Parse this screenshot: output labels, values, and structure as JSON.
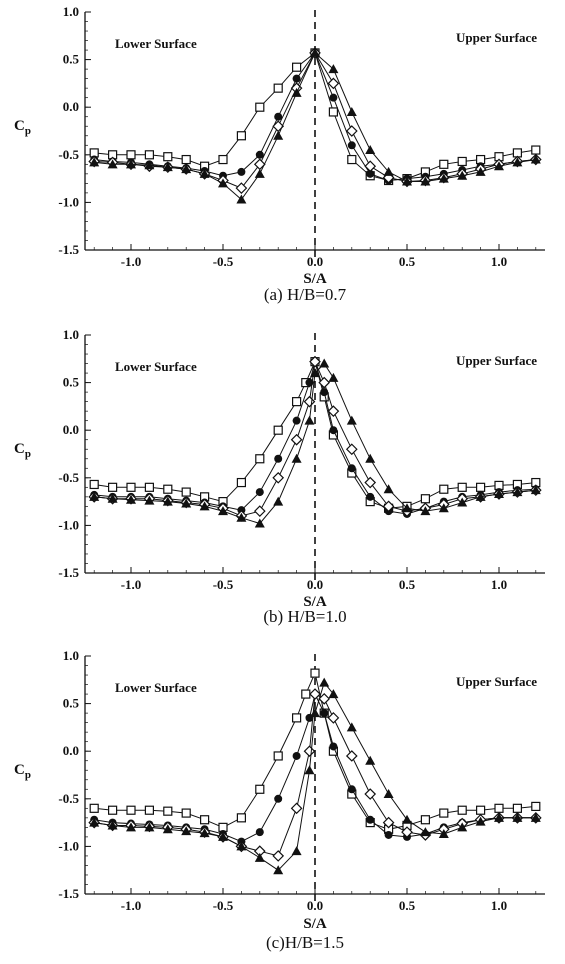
{
  "chart_data": [
    {
      "type": "line",
      "title": "(a) H/B=0.7",
      "xlabel": "S/A",
      "ylabel": "C",
      "ylabel_sub": "p",
      "xlim": [
        -1.25,
        1.25
      ],
      "ylim": [
        -1.5,
        1.0
      ],
      "xticks": [
        -1.0,
        -0.5,
        0.0,
        0.5,
        1.0
      ],
      "xtick_labels": [
        "-1.0",
        "-0.5",
        "0.0",
        "0.5",
        "1.0"
      ],
      "yticks": [
        1.0,
        0.5,
        0.0,
        -0.5,
        -1.0,
        -1.5
      ],
      "ytick_labels": [
        "1.0",
        "0.5",
        "0.0",
        "-0.5",
        "-1.0",
        "-1.5"
      ],
      "annotations": [
        "Lower Surface",
        "Upper Surface"
      ],
      "series": [
        {
          "marker": "square",
          "x": [
            -1.2,
            -1.1,
            -1.0,
            -0.9,
            -0.8,
            -0.7,
            -0.6,
            -0.5,
            -0.4,
            -0.3,
            -0.2,
            -0.1,
            0.0,
            0.1,
            0.2,
            0.3,
            0.4,
            0.5,
            0.6,
            0.7,
            0.8,
            0.9,
            1.0,
            1.1,
            1.2
          ],
          "y": [
            -0.48,
            -0.5,
            -0.5,
            -0.5,
            -0.52,
            -0.55,
            -0.62,
            -0.55,
            -0.3,
            0.0,
            0.2,
            0.42,
            0.57,
            -0.05,
            -0.55,
            -0.72,
            -0.77,
            -0.75,
            -0.68,
            -0.6,
            -0.57,
            -0.55,
            -0.52,
            -0.48,
            -0.45
          ]
        },
        {
          "marker": "circle",
          "x": [
            -1.2,
            -1.1,
            -1.0,
            -0.9,
            -0.8,
            -0.7,
            -0.6,
            -0.5,
            -0.4,
            -0.3,
            -0.2,
            -0.1,
            0.0,
            0.1,
            0.2,
            0.3,
            0.4,
            0.5,
            0.6,
            0.7,
            0.8,
            0.9,
            1.0,
            1.1,
            1.2
          ],
          "y": [
            -0.55,
            -0.57,
            -0.58,
            -0.6,
            -0.62,
            -0.64,
            -0.67,
            -0.72,
            -0.68,
            -0.5,
            -0.1,
            0.3,
            0.57,
            0.1,
            -0.4,
            -0.7,
            -0.77,
            -0.75,
            -0.73,
            -0.7,
            -0.66,
            -0.62,
            -0.6,
            -0.57,
            -0.55
          ]
        },
        {
          "marker": "diamond",
          "x": [
            -1.2,
            -1.1,
            -1.0,
            -0.9,
            -0.8,
            -0.7,
            -0.6,
            -0.5,
            -0.4,
            -0.3,
            -0.2,
            -0.1,
            0.0,
            0.1,
            0.2,
            0.3,
            0.4,
            0.5,
            0.6,
            0.7,
            0.8,
            0.9,
            1.0,
            1.1,
            1.2
          ],
          "y": [
            -0.57,
            -0.58,
            -0.6,
            -0.62,
            -0.63,
            -0.65,
            -0.7,
            -0.77,
            -0.85,
            -0.6,
            -0.2,
            0.2,
            0.57,
            0.25,
            -0.25,
            -0.62,
            -0.74,
            -0.78,
            -0.77,
            -0.74,
            -0.7,
            -0.65,
            -0.6,
            -0.57,
            -0.55
          ]
        },
        {
          "marker": "triangle",
          "x": [
            -1.2,
            -1.1,
            -1.0,
            -0.9,
            -0.8,
            -0.7,
            -0.6,
            -0.5,
            -0.4,
            -0.3,
            -0.2,
            -0.1,
            0.0,
            0.1,
            0.2,
            0.3,
            0.4,
            0.5,
            0.6,
            0.7,
            0.8,
            0.9,
            1.0,
            1.1,
            1.2
          ],
          "y": [
            -0.58,
            -0.6,
            -0.6,
            -0.61,
            -0.63,
            -0.65,
            -0.7,
            -0.8,
            -0.97,
            -0.7,
            -0.3,
            0.15,
            0.57,
            0.4,
            -0.05,
            -0.45,
            -0.68,
            -0.78,
            -0.78,
            -0.75,
            -0.72,
            -0.68,
            -0.62,
            -0.58,
            -0.55
          ]
        }
      ]
    },
    {
      "type": "line",
      "title": "(b) H/B=1.0",
      "xlabel": "S/A",
      "ylabel": "C",
      "ylabel_sub": "p",
      "xlim": [
        -1.25,
        1.25
      ],
      "ylim": [
        -1.5,
        1.0
      ],
      "xticks": [
        -1.0,
        -0.5,
        0.0,
        0.5,
        1.0
      ],
      "xtick_labels": [
        "-1.0",
        "-0.5",
        "0.0",
        "0.5",
        "1.0"
      ],
      "yticks": [
        1.0,
        0.5,
        0.0,
        -0.5,
        -1.0,
        -1.5
      ],
      "ytick_labels": [
        "1.0",
        "0.5",
        "0.0",
        "-0.5",
        "-1.0",
        "-1.5"
      ],
      "annotations": [
        "Lower Surface",
        "Upper Surface"
      ],
      "series": [
        {
          "marker": "square",
          "x": [
            -1.2,
            -1.1,
            -1.0,
            -0.9,
            -0.8,
            -0.7,
            -0.6,
            -0.5,
            -0.4,
            -0.3,
            -0.2,
            -0.1,
            -0.05,
            0.0,
            0.05,
            0.1,
            0.2,
            0.3,
            0.4,
            0.5,
            0.6,
            0.7,
            0.8,
            0.9,
            1.0,
            1.1,
            1.2
          ],
          "y": [
            -0.57,
            -0.6,
            -0.6,
            -0.6,
            -0.62,
            -0.65,
            -0.7,
            -0.75,
            -0.55,
            -0.3,
            0.0,
            0.3,
            0.5,
            0.72,
            0.35,
            -0.05,
            -0.45,
            -0.75,
            -0.82,
            -0.8,
            -0.72,
            -0.62,
            -0.6,
            -0.6,
            -0.58,
            -0.57,
            -0.55
          ]
        },
        {
          "marker": "circle",
          "x": [
            -1.2,
            -1.1,
            -1.0,
            -0.9,
            -0.8,
            -0.7,
            -0.6,
            -0.5,
            -0.4,
            -0.3,
            -0.2,
            -0.1,
            -0.03,
            0.0,
            0.05,
            0.1,
            0.2,
            0.3,
            0.4,
            0.5,
            0.6,
            0.7,
            0.8,
            0.9,
            1.0,
            1.1,
            1.2
          ],
          "y": [
            -0.68,
            -0.7,
            -0.7,
            -0.7,
            -0.72,
            -0.74,
            -0.76,
            -0.8,
            -0.84,
            -0.65,
            -0.3,
            0.1,
            0.5,
            0.72,
            0.4,
            0.0,
            -0.4,
            -0.7,
            -0.85,
            -0.88,
            -0.82,
            -0.75,
            -0.7,
            -0.68,
            -0.65,
            -0.63,
            -0.62
          ]
        },
        {
          "marker": "diamond",
          "x": [
            -1.2,
            -1.1,
            -1.0,
            -0.9,
            -0.8,
            -0.7,
            -0.6,
            -0.5,
            -0.4,
            -0.3,
            -0.2,
            -0.1,
            -0.03,
            0.0,
            0.05,
            0.1,
            0.2,
            0.3,
            0.4,
            0.5,
            0.6,
            0.7,
            0.8,
            0.9,
            1.0,
            1.1,
            1.2
          ],
          "y": [
            -0.7,
            -0.72,
            -0.72,
            -0.72,
            -0.74,
            -0.76,
            -0.78,
            -0.82,
            -0.9,
            -0.85,
            -0.5,
            -0.1,
            0.3,
            0.72,
            0.5,
            0.2,
            -0.2,
            -0.55,
            -0.8,
            -0.85,
            -0.82,
            -0.78,
            -0.72,
            -0.7,
            -0.67,
            -0.65,
            -0.63
          ]
        },
        {
          "marker": "triangle",
          "x": [
            -1.2,
            -1.1,
            -1.0,
            -0.9,
            -0.8,
            -0.7,
            -0.6,
            -0.5,
            -0.4,
            -0.3,
            -0.2,
            -0.1,
            -0.03,
            0.0,
            0.05,
            0.1,
            0.2,
            0.3,
            0.4,
            0.5,
            0.6,
            0.7,
            0.8,
            0.9,
            1.0,
            1.1,
            1.2
          ],
          "y": [
            -0.7,
            -0.72,
            -0.73,
            -0.74,
            -0.75,
            -0.77,
            -0.8,
            -0.85,
            -0.92,
            -0.98,
            -0.75,
            -0.3,
            0.1,
            0.6,
            0.7,
            0.55,
            0.1,
            -0.3,
            -0.62,
            -0.82,
            -0.85,
            -0.82,
            -0.76,
            -0.7,
            -0.67,
            -0.65,
            -0.63
          ]
        }
      ]
    },
    {
      "type": "line",
      "title": "(c)H/B=1.5",
      "xlabel": "S/A",
      "ylabel": "C",
      "ylabel_sub": "p",
      "xlim": [
        -1.25,
        1.25
      ],
      "ylim": [
        -1.5,
        1.0
      ],
      "xticks": [
        -1.0,
        -0.5,
        0.0,
        0.5,
        1.0
      ],
      "xtick_labels": [
        "-1.0",
        "-0.5",
        "0.0",
        "0.5",
        "1.0"
      ],
      "yticks": [
        1.0,
        0.5,
        0.0,
        -0.5,
        -1.0,
        -1.5
      ],
      "ytick_labels": [
        "1.0",
        "0.5",
        "0.0",
        "-0.5",
        "-1.0",
        "-1.5"
      ],
      "annotations": [
        "Lower Surface",
        "Upper Surface"
      ],
      "series": [
        {
          "marker": "square",
          "x": [
            -1.2,
            -1.1,
            -1.0,
            -0.9,
            -0.8,
            -0.7,
            -0.6,
            -0.5,
            -0.4,
            -0.3,
            -0.2,
            -0.1,
            -0.05,
            0.0,
            0.05,
            0.1,
            0.2,
            0.3,
            0.4,
            0.5,
            0.6,
            0.7,
            0.8,
            0.9,
            1.0,
            1.1,
            1.2
          ],
          "y": [
            -0.6,
            -0.62,
            -0.62,
            -0.62,
            -0.63,
            -0.65,
            -0.72,
            -0.8,
            -0.7,
            -0.4,
            -0.05,
            0.35,
            0.6,
            0.82,
            0.4,
            0.0,
            -0.45,
            -0.75,
            -0.82,
            -0.78,
            -0.72,
            -0.65,
            -0.62,
            -0.62,
            -0.6,
            -0.6,
            -0.58
          ]
        },
        {
          "marker": "circle",
          "x": [
            -1.2,
            -1.1,
            -1.0,
            -0.9,
            -0.8,
            -0.7,
            -0.6,
            -0.5,
            -0.4,
            -0.3,
            -0.2,
            -0.1,
            -0.03,
            0.0,
            0.05,
            0.1,
            0.2,
            0.3,
            0.4,
            0.5,
            0.6,
            0.7,
            0.8,
            0.9,
            1.0,
            1.1,
            1.2
          ],
          "y": [
            -0.72,
            -0.75,
            -0.76,
            -0.77,
            -0.78,
            -0.8,
            -0.82,
            -0.87,
            -0.95,
            -0.85,
            -0.5,
            -0.05,
            0.35,
            0.6,
            0.4,
            0.05,
            -0.4,
            -0.72,
            -0.88,
            -0.9,
            -0.87,
            -0.8,
            -0.75,
            -0.72,
            -0.7,
            -0.7,
            -0.7
          ]
        },
        {
          "marker": "diamond",
          "x": [
            -1.2,
            -1.1,
            -1.0,
            -0.9,
            -0.8,
            -0.7,
            -0.6,
            -0.5,
            -0.4,
            -0.3,
            -0.2,
            -0.1,
            -0.03,
            0.0,
            0.05,
            0.1,
            0.2,
            0.3,
            0.4,
            0.5,
            0.6,
            0.7,
            0.8,
            0.9,
            1.0,
            1.1,
            1.2
          ],
          "y": [
            -0.75,
            -0.78,
            -0.78,
            -0.79,
            -0.8,
            -0.82,
            -0.85,
            -0.9,
            -1.0,
            -1.05,
            -1.1,
            -0.6,
            0.0,
            0.6,
            0.55,
            0.35,
            -0.05,
            -0.45,
            -0.75,
            -0.85,
            -0.88,
            -0.82,
            -0.76,
            -0.72,
            -0.7,
            -0.7,
            -0.7
          ]
        },
        {
          "marker": "triangle",
          "x": [
            -1.2,
            -1.1,
            -1.0,
            -0.9,
            -0.8,
            -0.7,
            -0.6,
            -0.5,
            -0.4,
            -0.3,
            -0.2,
            -0.1,
            -0.03,
            0.0,
            0.05,
            0.1,
            0.2,
            0.3,
            0.4,
            0.5,
            0.6,
            0.7,
            0.8,
            0.9,
            1.0,
            1.1,
            1.2
          ],
          "y": [
            -0.75,
            -0.78,
            -0.8,
            -0.8,
            -0.82,
            -0.84,
            -0.86,
            -0.9,
            -1.0,
            -1.12,
            -1.25,
            -1.05,
            -0.2,
            0.4,
            0.72,
            0.6,
            0.25,
            -0.1,
            -0.45,
            -0.72,
            -0.85,
            -0.87,
            -0.8,
            -0.74,
            -0.7,
            -0.7,
            -0.7
          ]
        }
      ]
    }
  ]
}
